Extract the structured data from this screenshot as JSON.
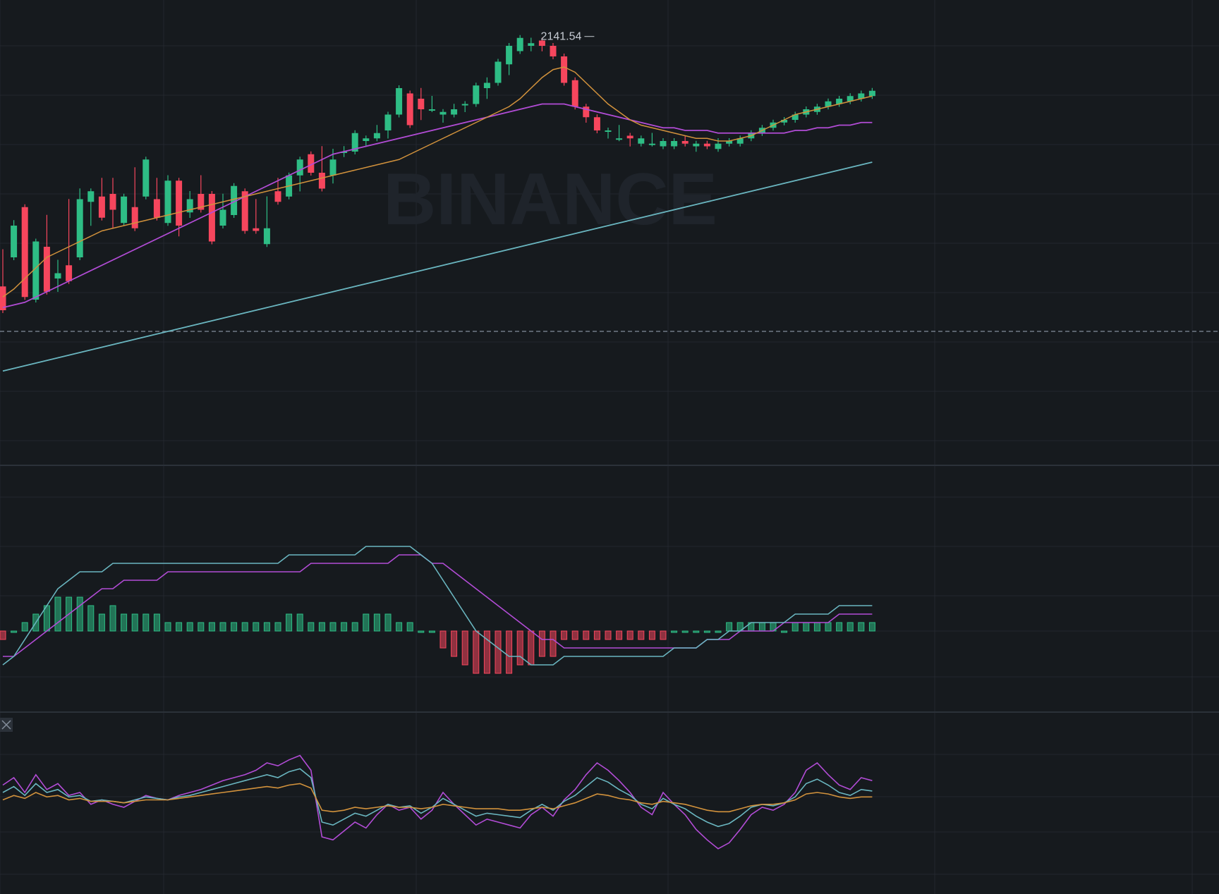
{
  "watermark": "BINANCE",
  "colors": {
    "background": "#161a1e",
    "grid": "#23272e",
    "divider": "#2b3139",
    "up": "#2ebd85",
    "down": "#f6465d",
    "ma_short": "#d2923c",
    "ma_mid": "#b24cd6",
    "ma_long": "#6ab6c0",
    "text": "#c7ccd4"
  },
  "chart_data": [
    {
      "type": "candlestick",
      "panel": "price",
      "annotation": {
        "label": "2141.54",
        "value": 2141.54,
        "candle_index": 54
      },
      "ylim": [
        1990,
        2150
      ],
      "reference_line": 2030,
      "grid": true,
      "candles": [
        [
          2047,
          2060,
          2039,
          2038
        ],
        [
          2058,
          2071,
          2062,
          2070
        ],
        [
          2077,
          2070,
          2043,
          2043
        ],
        [
          2042,
          2053,
          2058,
          2064
        ],
        [
          2062,
          2073,
          2048,
          2045
        ],
        [
          2050,
          2056,
          2046,
          2052
        ],
        [
          2055,
          2079,
          2052,
          2049
        ],
        [
          2058,
          2083,
          2070,
          2080
        ],
        [
          2079,
          2081,
          2071,
          2083
        ],
        [
          2081,
          2087,
          2073,
          2073
        ],
        [
          2082,
          2087,
          2070,
          2076
        ],
        [
          2071,
          2072,
          2078,
          2081
        ],
        [
          2077,
          2091,
          2071,
          2069
        ],
        [
          2081,
          2086,
          2085,
          2095
        ],
        [
          2080,
          2087,
          2074,
          2073
        ],
        [
          2071,
          2075,
          2088,
          2087
        ],
        [
          2087,
          2081,
          2067,
          2070
        ],
        [
          2075,
          2082,
          2074,
          2080
        ],
        [
          2082,
          2088,
          2082,
          2076
        ],
        [
          2082,
          2077,
          2068,
          2064
        ],
        [
          2070,
          2081,
          2074,
          2076
        ],
        [
          2074,
          2080,
          2083,
          2085
        ],
        [
          2083,
          2076,
          2074,
          2068
        ],
        [
          2069,
          2079,
          2070,
          2068
        ],
        [
          2063,
          2080,
          2080,
          2069
        ],
        [
          2083,
          2087,
          2084,
          2079
        ],
        [
          2081,
          2087,
          2088,
          2089
        ],
        [
          2089,
          2095,
          2084,
          2095
        ],
        [
          2097,
          2095,
          2090,
          2090
        ],
        [
          2090,
          2084,
          2099,
          2084
        ],
        [
          2089,
          2098,
          2087,
          2095
        ],
        [
          2098,
          2097,
          2099,
          2098
        ],
        [
          2098,
          2098,
          2100,
          2105
        ],
        [
          2102,
          2101,
          2102,
          2103
        ],
        [
          2103,
          2103,
          2107,
          2105
        ],
        [
          2106,
          2104,
          2110,
          2112
        ],
        [
          2112,
          2117,
          2118,
          2122
        ],
        [
          2120,
          2111,
          2109,
          2108
        ],
        [
          2118,
          2121,
          2111,
          2114
        ],
        [
          2114,
          2118,
          2115,
          2114
        ],
        [
          2112,
          2112,
          2110,
          2113
        ],
        [
          2112,
          2114,
          2115,
          2114
        ],
        [
          2116,
          2115,
          2114,
          2116
        ],
        [
          2116,
          2123,
          2117,
          2123
        ],
        [
          2122,
          2119,
          2125,
          2124
        ],
        [
          2124,
          2127,
          2129,
          2132
        ],
        [
          2131,
          2128,
          2132,
          2138
        ],
        [
          2136,
          2137,
          2141,
          2141
        ],
        [
          2138,
          2137,
          2140,
          2139
        ],
        [
          2140,
          2139,
          2137,
          2138
        ],
        [
          2138,
          2137,
          2136,
          2134
        ],
        [
          2134,
          2130,
          2129,
          2124
        ],
        [
          2125,
          2121,
          2115,
          2115
        ],
        [
          2115,
          2114,
          2110,
          2111
        ],
        [
          2111,
          2108,
          2107,
          2106
        ],
        [
          2106,
          2104,
          2106,
          2106
        ],
        [
          2103,
          2107,
          2103,
          2103
        ],
        [
          2104,
          2103,
          2101,
          2103
        ],
        [
          2101,
          2103,
          2102,
          2103
        ],
        [
          2101,
          2104,
          2103,
          2101
        ],
        [
          2100,
          2100,
          2101,
          2102
        ],
        [
          2100,
          2101,
          2102,
          2102
        ],
        [
          2102,
          2103,
          2102,
          2101
        ],
        [
          2100,
          2101,
          2099,
          2101
        ],
        [
          2101,
          2101,
          2100,
          2100
        ],
        [
          2099,
          2101,
          2102,
          2101
        ],
        [
          2101,
          2101,
          2101,
          2102
        ],
        [
          2101,
          2102,
          2102,
          2103
        ],
        [
          2103,
          2104,
          2104,
          2105
        ],
        [
          2105,
          2105,
          2106,
          2107
        ],
        [
          2107,
          2108,
          2108,
          2109
        ],
        [
          2109,
          2109,
          2109,
          2110
        ],
        [
          2110,
          2111,
          2110,
          2112
        ],
        [
          2112,
          2113,
          2112,
          2114
        ],
        [
          2113,
          2114,
          2113,
          2115
        ],
        [
          2115,
          2116,
          2115,
          2117
        ],
        [
          2116,
          2117,
          2117,
          2118
        ],
        [
          2117,
          2118,
          2118,
          2119
        ],
        [
          2118,
          2119,
          2119,
          2120
        ],
        [
          2119,
          2120,
          2120,
          2121
        ]
      ],
      "ma_short": [
        2043,
        2046,
        2050,
        2054,
        2058,
        2060,
        2062,
        2064,
        2066,
        2068,
        2069,
        2070,
        2071,
        2072,
        2073,
        2074,
        2075,
        2076,
        2077,
        2078,
        2079,
        2080,
        2081,
        2082,
        2083,
        2084,
        2085,
        2086,
        2087,
        2088,
        2089,
        2090,
        2091,
        2092,
        2093,
        2094,
        2095,
        2097,
        2099,
        2101,
        2103,
        2105,
        2107,
        2109,
        2111,
        2113,
        2115,
        2118,
        2122,
        2126,
        2129,
        2130,
        2128,
        2124,
        2120,
        2116,
        2113,
        2110,
        2108,
        2107,
        2106,
        2105,
        2104,
        2103,
        2103,
        2102,
        2102,
        2103,
        2104,
        2106,
        2108,
        2110,
        2112,
        2113,
        2114,
        2115,
        2116,
        2117,
        2118,
        2119
      ],
      "ma_mid": [
        2039,
        2040,
        2041,
        2043,
        2045,
        2047,
        2049,
        2051,
        2053,
        2055,
        2057,
        2059,
        2061,
        2063,
        2065,
        2067,
        2069,
        2071,
        2073,
        2075,
        2077,
        2079,
        2081,
        2083,
        2085,
        2087,
        2089,
        2091,
        2093,
        2095,
        2097,
        2098,
        2099,
        2100,
        2101,
        2102,
        2103,
        2104,
        2105,
        2106,
        2107,
        2108,
        2109,
        2110,
        2111,
        2112,
        2113,
        2114,
        2115,
        2116,
        2116,
        2116,
        2115,
        2114,
        2113,
        2112,
        2111,
        2110,
        2109,
        2108,
        2107,
        2107,
        2106,
        2106,
        2106,
        2105,
        2105,
        2105,
        2105,
        2105,
        2105,
        2105,
        2106,
        2106,
        2107,
        2107,
        2108,
        2108,
        2109,
        2109
      ],
      "ma_long": [
        2015,
        2016,
        2017,
        2018,
        2019,
        2020,
        2021,
        2022,
        2023,
        2024,
        2025,
        2026,
        2027,
        2028,
        2029,
        2030,
        2031,
        2032,
        2033,
        2034,
        2035,
        2036,
        2037,
        2038,
        2039,
        2040,
        2041,
        2042,
        2043,
        2044,
        2045,
        2046,
        2047,
        2048,
        2049,
        2050,
        2051,
        2052,
        2053,
        2054,
        2055,
        2056,
        2057,
        2058,
        2059,
        2060,
        2061,
        2062,
        2063,
        2064,
        2065,
        2066,
        2067,
        2068,
        2069,
        2070,
        2071,
        2072,
        2073,
        2074,
        2075,
        2076,
        2077,
        2078,
        2079,
        2080,
        2081,
        2082,
        2083,
        2084,
        2085,
        2086,
        2087,
        2088,
        2089,
        2090,
        2091,
        2092,
        2093,
        2094
      ]
    },
    {
      "type": "macd",
      "panel": "macd",
      "ylim": [
        -10,
        10
      ],
      "dif": [
        -4,
        -3,
        -1,
        1,
        3,
        5,
        6,
        7,
        7,
        7,
        8,
        8,
        8,
        8,
        8,
        8,
        8,
        8,
        8,
        8,
        8,
        8,
        8,
        8,
        8,
        8,
        9,
        9,
        9,
        9,
        9,
        9,
        9,
        10,
        10,
        10,
        10,
        10,
        9,
        8,
        6,
        4,
        2,
        0,
        -1,
        -2,
        -3,
        -3,
        -4,
        -4,
        -4,
        -3,
        -3,
        -3,
        -3,
        -3,
        -3,
        -3,
        -3,
        -3,
        -3,
        -2,
        -2,
        -2,
        -1,
        -1,
        0,
        0,
        1,
        1,
        1,
        1,
        2,
        2,
        2,
        2,
        3,
        3,
        3,
        3
      ],
      "dea": [
        -3,
        -3,
        -2,
        -1,
        0,
        1,
        2,
        3,
        4,
        5,
        5,
        6,
        6,
        6,
        6,
        7,
        7,
        7,
        7,
        7,
        7,
        7,
        7,
        7,
        7,
        7,
        7,
        7,
        8,
        8,
        8,
        8,
        8,
        8,
        8,
        8,
        9,
        9,
        9,
        8,
        8,
        7,
        6,
        5,
        4,
        3,
        2,
        1,
        0,
        -1,
        -1,
        -2,
        -2,
        -2,
        -2,
        -2,
        -2,
        -2,
        -2,
        -2,
        -2,
        -2,
        -2,
        -2,
        -1,
        -1,
        -1,
        0,
        0,
        0,
        0,
        1,
        1,
        1,
        1,
        1,
        2,
        2,
        2,
        2
      ],
      "histogram": [
        -1,
        0,
        1,
        2,
        3,
        4,
        4,
        4,
        3,
        2,
        3,
        2,
        2,
        2,
        2,
        1,
        1,
        1,
        1,
        1,
        1,
        1,
        1,
        1,
        1,
        1,
        2,
        2,
        1,
        1,
        1,
        1,
        1,
        2,
        2,
        2,
        1,
        1,
        0,
        0,
        -2,
        -3,
        -4,
        -5,
        -5,
        -5,
        -5,
        -4,
        -4,
        -3,
        -3,
        -1,
        -1,
        -1,
        -1,
        -1,
        -1,
        -1,
        -1,
        -1,
        -1,
        0,
        0,
        0,
        0,
        0,
        1,
        1,
        1,
        1,
        1,
        0,
        1,
        1,
        1,
        1,
        1,
        1,
        1,
        1
      ]
    },
    {
      "type": "line",
      "panel": "oscillator",
      "ylim": [
        0,
        100
      ],
      "series": [
        {
          "color_key": "ma_mid",
          "values": [
            65,
            70,
            60,
            72,
            62,
            66,
            58,
            60,
            52,
            55,
            52,
            50,
            54,
            58,
            56,
            55,
            58,
            60,
            62,
            65,
            68,
            70,
            72,
            75,
            80,
            78,
            82,
            85,
            75,
            30,
            28,
            34,
            40,
            36,
            45,
            52,
            48,
            50,
            42,
            48,
            60,
            52,
            45,
            38,
            42,
            40,
            38,
            36,
            45,
            50,
            44,
            55,
            62,
            72,
            80,
            75,
            68,
            60,
            50,
            45,
            60,
            52,
            45,
            35,
            28,
            22,
            26,
            35,
            45,
            50,
            48,
            52,
            60,
            75,
            80,
            72,
            65,
            62,
            70,
            68
          ]
        },
        {
          "color_key": "ma_long",
          "values": [
            60,
            64,
            58,
            66,
            60,
            62,
            57,
            58,
            54,
            55,
            54,
            53,
            55,
            57,
            56,
            55,
            57,
            58,
            60,
            62,
            64,
            66,
            68,
            70,
            72,
            70,
            74,
            76,
            70,
            40,
            38,
            42,
            46,
            44,
            48,
            52,
            50,
            51,
            46,
            50,
            56,
            52,
            48,
            44,
            46,
            45,
            44,
            43,
            48,
            52,
            48,
            54,
            58,
            64,
            70,
            67,
            62,
            58,
            52,
            49,
            56,
            52,
            49,
            44,
            40,
            37,
            39,
            44,
            50,
            52,
            51,
            53,
            57,
            66,
            69,
            65,
            60,
            58,
            62,
            61
          ]
        },
        {
          "color_key": "ma_short",
          "values": [
            55,
            58,
            56,
            60,
            57,
            58,
            55,
            56,
            54,
            54,
            54,
            53,
            54,
            55,
            55,
            55,
            56,
            57,
            58,
            59,
            60,
            61,
            62,
            63,
            64,
            63,
            65,
            66,
            63,
            48,
            47,
            48,
            50,
            49,
            50,
            51,
            50,
            50,
            49,
            50,
            52,
            51,
            50,
            49,
            49,
            49,
            48,
            48,
            49,
            50,
            49,
            51,
            53,
            56,
            59,
            58,
            56,
            55,
            53,
            52,
            54,
            53,
            52,
            50,
            48,
            47,
            47,
            49,
            51,
            52,
            52,
            53,
            55,
            59,
            60,
            59,
            57,
            56,
            57,
            57
          ]
        }
      ]
    }
  ]
}
